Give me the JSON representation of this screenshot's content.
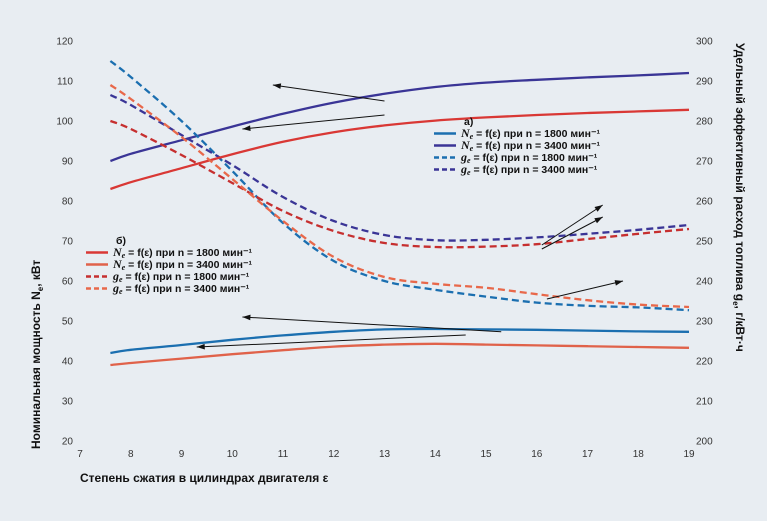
{
  "chart_data": {
    "type": "line",
    "xlabel": "Степень сжатия в цилиндрах двигателя ε",
    "ylabel_left": "Номинальная мощность N",
    "ylabel_left_sub": "e",
    "ylabel_left_unit": ", кВт",
    "ylabel_right": "Удельный эффективный расход топлива g",
    "ylabel_right_sub": "e",
    "ylabel_right_unit": ", г/кВт·ч",
    "xlim": [
      7,
      19
    ],
    "ylim_left": [
      20,
      120
    ],
    "ylim_right": [
      200,
      300
    ],
    "x_ticks": [
      "7",
      "8",
      "9",
      "10",
      "11",
      "12",
      "13",
      "14",
      "15",
      "16",
      "17",
      "18",
      "19"
    ],
    "y_left_ticks": [
      "20",
      "30",
      "40",
      "50",
      "60",
      "70",
      "80",
      "90",
      "100",
      "110",
      "120"
    ],
    "y_right_ticks": [
      "200",
      "210",
      "220",
      "230",
      "240",
      "250",
      "260",
      "270",
      "280",
      "290",
      "300"
    ],
    "legends": [
      {
        "title": "а)",
        "position": "right-middle",
        "entries": [
          {
            "lead": "N",
            "sub": "e",
            "text": " = f(ε) при n = 1800 мин⁻¹"
          },
          {
            "lead": "N",
            "sub": "e",
            "text": " = f(ε) при n = 3400 мин⁻¹"
          },
          {
            "lead": "g",
            "sub": "e",
            "text": " = f(ε) при n = 1800 мин⁻¹"
          },
          {
            "lead": "g",
            "sub": "e",
            "text": " = f(ε) при n = 3400 мин⁻¹"
          }
        ]
      },
      {
        "title": "б)",
        "position": "left-middle",
        "entries": [
          {
            "lead": "N",
            "sub": "e",
            "text": " = f(ε) при n = 1800 мин⁻¹"
          },
          {
            "lead": "N",
            "sub": "e",
            "text": " = f(ε) при n = 3400 мин⁻¹"
          },
          {
            "lead": "g",
            "sub": "e",
            "text": " = f(ε) при n = 1800 мин⁻¹"
          },
          {
            "lead": "g",
            "sub": "e",
            "text": " = f(ε) при n = 3400 мин⁻¹"
          }
        ]
      }
    ],
    "series": [
      {
        "group": "а",
        "quantity": "Ne",
        "n": 1800,
        "axis": "left",
        "color": "#1b6fb0",
        "dash": false,
        "x": [
          7.6,
          8,
          9,
          10,
          11,
          12,
          13,
          14,
          15,
          16,
          17,
          18,
          19
        ],
        "y": [
          42,
          42.8,
          44,
          45.3,
          46.4,
          47.3,
          47.9,
          48,
          47.9,
          47.8,
          47.6,
          47.4,
          47.3
        ]
      },
      {
        "group": "а",
        "quantity": "Ne",
        "n": 3400,
        "axis": "left",
        "color": "#3a3596",
        "dash": false,
        "x": [
          7.6,
          8,
          9,
          10,
          11,
          12,
          13,
          14,
          15,
          16,
          17,
          18,
          19
        ],
        "y": [
          90,
          91.8,
          95.2,
          98.6,
          101.8,
          104.6,
          106.8,
          108.5,
          109.6,
          110.3,
          110.9,
          111.4,
          112
        ]
      },
      {
        "group": "а",
        "quantity": "ge",
        "n": 1800,
        "axis": "right",
        "color": "#1b6fb0",
        "dash": true,
        "x": [
          7.6,
          8,
          9,
          10,
          11,
          12,
          13,
          14,
          15,
          16,
          17,
          18,
          19
        ],
        "y": [
          295,
          291,
          280,
          267.5,
          254.5,
          245,
          240,
          237.8,
          236.1,
          234.6,
          233.8,
          233.4,
          232.7
        ]
      },
      {
        "group": "а",
        "quantity": "ge",
        "n": 3400,
        "axis": "right",
        "color": "#3a3596",
        "dash": true,
        "x": [
          7.6,
          8,
          9,
          10,
          11,
          12,
          13,
          14,
          15,
          16,
          17,
          18,
          19
        ],
        "y": [
          286.5,
          284,
          276.5,
          269,
          261,
          255,
          251.5,
          250.2,
          250.3,
          250.9,
          251.8,
          252.8,
          254
        ]
      },
      {
        "group": "б",
        "quantity": "Ne",
        "n": 1800,
        "axis": "left",
        "color": "#d93835",
        "dash": false,
        "x": [
          7.6,
          8,
          9,
          10,
          11,
          12,
          13,
          14,
          15,
          16,
          17,
          18,
          19
        ],
        "y": [
          83,
          84.7,
          88.2,
          91.7,
          94.8,
          97.2,
          98.9,
          100.1,
          100.9,
          101.5,
          102,
          102.4,
          102.8
        ]
      },
      {
        "group": "б",
        "quantity": "Ne",
        "n": 3400,
        "axis": "left",
        "color": "#e0624a",
        "dash": false,
        "x": [
          7.6,
          8,
          9,
          10,
          11,
          12,
          13,
          14,
          15,
          16,
          17,
          18,
          19
        ],
        "y": [
          39,
          39.5,
          40.6,
          41.7,
          42.7,
          43.6,
          44.1,
          44.3,
          44.1,
          43.9,
          43.7,
          43.5,
          43.3
        ]
      },
      {
        "group": "б",
        "quantity": "ge",
        "n": 1800,
        "axis": "right",
        "color": "#c62f2f",
        "dash": true,
        "x": [
          7.6,
          8,
          9,
          10,
          11,
          12,
          13,
          14,
          15,
          16,
          17,
          18,
          19
        ],
        "y": [
          280,
          278,
          271.5,
          264.5,
          257.5,
          252.5,
          249.5,
          248.5,
          248.6,
          249.2,
          250.5,
          251.8,
          253
        ]
      },
      {
        "group": "б",
        "quantity": "ge",
        "n": 3400,
        "axis": "right",
        "color": "#e8684a",
        "dash": true,
        "x": [
          7.6,
          8,
          9,
          10,
          11,
          12,
          13,
          14,
          15,
          16,
          17,
          18,
          19
        ],
        "y": [
          289,
          285.5,
          276,
          265.5,
          255,
          246,
          241,
          239.3,
          238.3,
          236.7,
          235.2,
          234.1,
          233.5
        ]
      }
    ],
    "grid": false
  }
}
